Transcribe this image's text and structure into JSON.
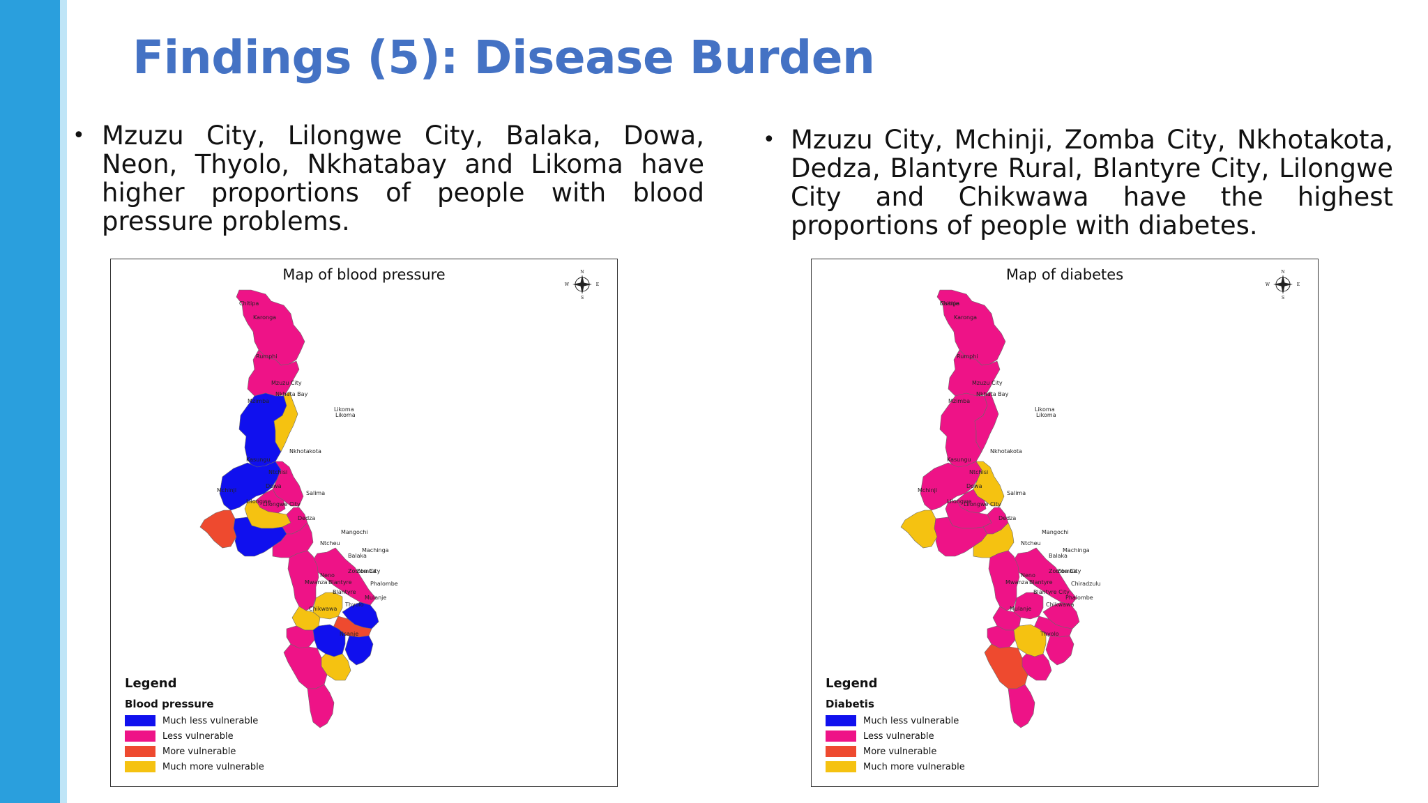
{
  "slide": {
    "title": "Findings (5): Disease Burden"
  },
  "bullets": {
    "symbol": "•",
    "left": "Mzuzu City, Lilongwe City, Balaka, Dowa, Neon, Thyolo, Nkhatabay and Likoma have higher proportions of people with blood pressure problems.",
    "right": "Mzuzu City, Mchinji, Zomba City, Nkhotakota, Dedza, Blantyre Rural, Blantyre City, Lilongwe City and Chikwawa have the highest proportions of people with diabetes."
  },
  "colors": {
    "much_less": "#1010ee",
    "less": "#ee1387",
    "more": "#ee4a2f",
    "much_more": "#f5c211",
    "title_blue": "#4472c4",
    "band": "#2a9fdd"
  },
  "maps": [
    {
      "title": "Map of blood pressure",
      "legend_heading": "Legend",
      "legend_subtitle": "Blood pressure",
      "legend_items": [
        "Much less vulnerable",
        "Less vulnerable",
        "More vulnerable",
        "Much more vulnerable"
      ],
      "compass": {
        "n": "N",
        "s": "S",
        "e": "E",
        "w": "W"
      },
      "region_classes": {
        "north_top": "less",
        "rumphi": "less",
        "mzimba": "much_less",
        "nkhatabay": "much_more",
        "kasungu": "much_less",
        "nkhotakota": "less",
        "ntchisi": "less",
        "dowa": "much_more",
        "mchinji": "more",
        "lilongwe": "much_less",
        "salima": "less",
        "dedza": "less",
        "mangochi": "less",
        "machinga": "much_less",
        "balaka": "much_more",
        "ntcheu": "less",
        "zomba": "more",
        "phalombe": "much_less",
        "neno": "much_more",
        "mwanza": "less",
        "blantyre": "much_less",
        "thyolo": "much_more",
        "chikwawa": "less",
        "nsanje": "less"
      },
      "place_labels": [
        "Chitipa",
        "Karonga",
        "Rumphi",
        "Mzuzu City",
        "Nkhata Bay",
        "Mzimba",
        "Likoma",
        "Likoma",
        "Nkhotakota",
        "Kasungu",
        "Ntchisi",
        "Dowa",
        "Mchinji",
        "Salima",
        "Lilongwe",
        "Lilongwe City",
        "Dedza",
        "Mangochi",
        "Ntcheu",
        "Balaka",
        "Machinga",
        "Zomba City",
        "Zomba",
        "Neno",
        "Mwanza",
        "Blantyre",
        "Blantyre",
        "Phalombe",
        "Mulanje",
        "Chikwawa",
        "Thyolo",
        "Nsanje"
      ]
    },
    {
      "title": "Map of diabetes",
      "legend_heading": "Legend",
      "legend_subtitle": "Diabetis",
      "legend_items": [
        "Much less vulnerable",
        "Less vulnerable",
        "More vulnerable",
        "Much more vulnerable"
      ],
      "compass": {
        "n": "N",
        "s": "S",
        "e": "E",
        "w": "W"
      },
      "region_classes": {
        "north_top": "less",
        "rumphi": "less",
        "mzimba": "less",
        "nkhatabay": "less",
        "kasungu": "less",
        "nkhotakota": "much_more",
        "ntchisi": "less",
        "dowa": "less",
        "mchinji": "much_more",
        "lilongwe": "less",
        "salima": "less",
        "dedza": "much_more",
        "mangochi": "less",
        "machinga": "less",
        "balaka": "less",
        "ntcheu": "less",
        "zomba": "less",
        "phalombe": "less",
        "neno": "less",
        "mwanza": "less",
        "blantyre": "much_more",
        "thyolo": "less",
        "chikwawa": "more",
        "nsanje": "less"
      },
      "place_labels": [
        "Chitipa",
        "Karonga",
        "Rumphi",
        "Mzuzu City",
        "Nkhata Bay",
        "Mzimba",
        "Likoma",
        "Likoma",
        "Nkhotakota",
        "Kasungu",
        "Ntchisi",
        "Dowa",
        "Mchinji",
        "Salima",
        "Lilongwe",
        "Lilongwe City",
        "Dedza",
        "Mangochi",
        "Ntcheu",
        "Balaka",
        "Machinga",
        "Zomba City",
        "Zomba",
        "Neno",
        "Mwanza",
        "Blantyre",
        "Blantyre City",
        "Chiradzulu",
        "Phalombe",
        "Mulanje",
        "Chikwawa",
        "Thyolo",
        "Nsanje"
      ]
    }
  ]
}
